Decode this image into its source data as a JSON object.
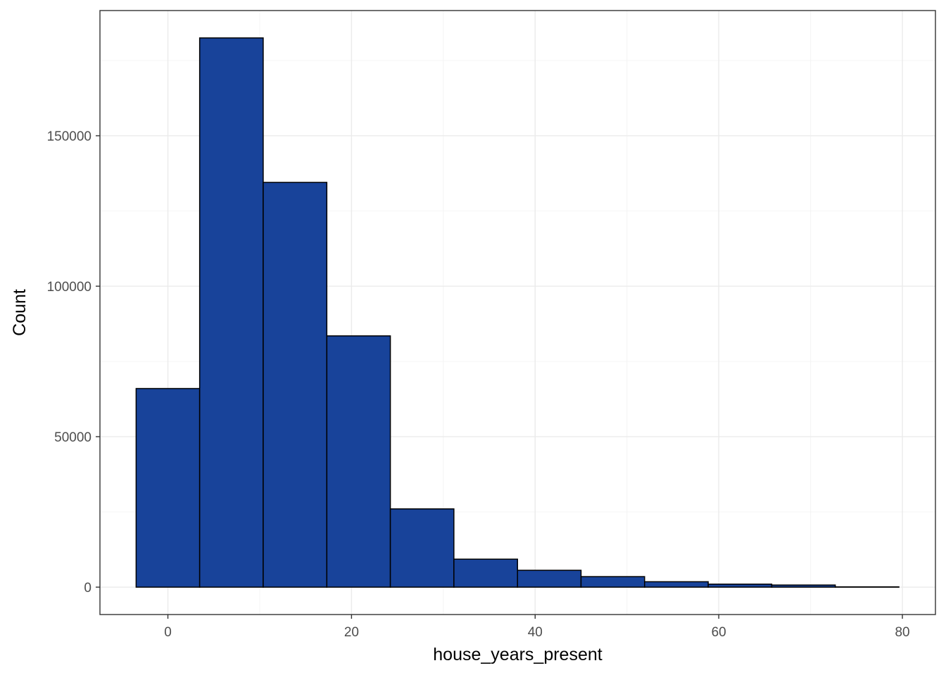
{
  "chart_data": {
    "type": "bar",
    "subtype": "histogram",
    "title": "",
    "xlabel": "house_years_present",
    "ylabel": "Count",
    "bins": [
      {
        "x0": -3.46,
        "x1": 3.46,
        "count": 66000
      },
      {
        "x0": 3.46,
        "x1": 10.38,
        "count": 182500
      },
      {
        "x0": 10.38,
        "x1": 17.31,
        "count": 134500
      },
      {
        "x0": 17.31,
        "x1": 24.23,
        "count": 83500
      },
      {
        "x0": 24.23,
        "x1": 31.15,
        "count": 26000
      },
      {
        "x0": 31.15,
        "x1": 38.08,
        "count": 9300
      },
      {
        "x0": 38.08,
        "x1": 45.0,
        "count": 5600
      },
      {
        "x0": 45.0,
        "x1": 51.92,
        "count": 3500
      },
      {
        "x0": 51.92,
        "x1": 58.85,
        "count": 1800
      },
      {
        "x0": 58.85,
        "x1": 65.77,
        "count": 1000
      },
      {
        "x0": 65.77,
        "x1": 72.69,
        "count": 700
      },
      {
        "x0": 72.69,
        "x1": 79.62,
        "count": 100
      }
    ],
    "xlim": [
      -7.4,
      83.6
    ],
    "ylim": [
      -9100,
      191600
    ],
    "x_ticks": [
      0,
      20,
      40,
      60,
      80
    ],
    "x_minor": [
      10,
      30,
      50,
      70
    ],
    "y_ticks": [
      0,
      50000,
      100000,
      150000
    ],
    "y_minor": [
      25000,
      75000,
      125000,
      175000
    ],
    "grid": true,
    "colors": {
      "fill": "#18439a",
      "outline": "#000000",
      "grid_major": "#ebebeb",
      "grid_minor": "#f4f4f4",
      "panel_border": "#333333"
    }
  }
}
